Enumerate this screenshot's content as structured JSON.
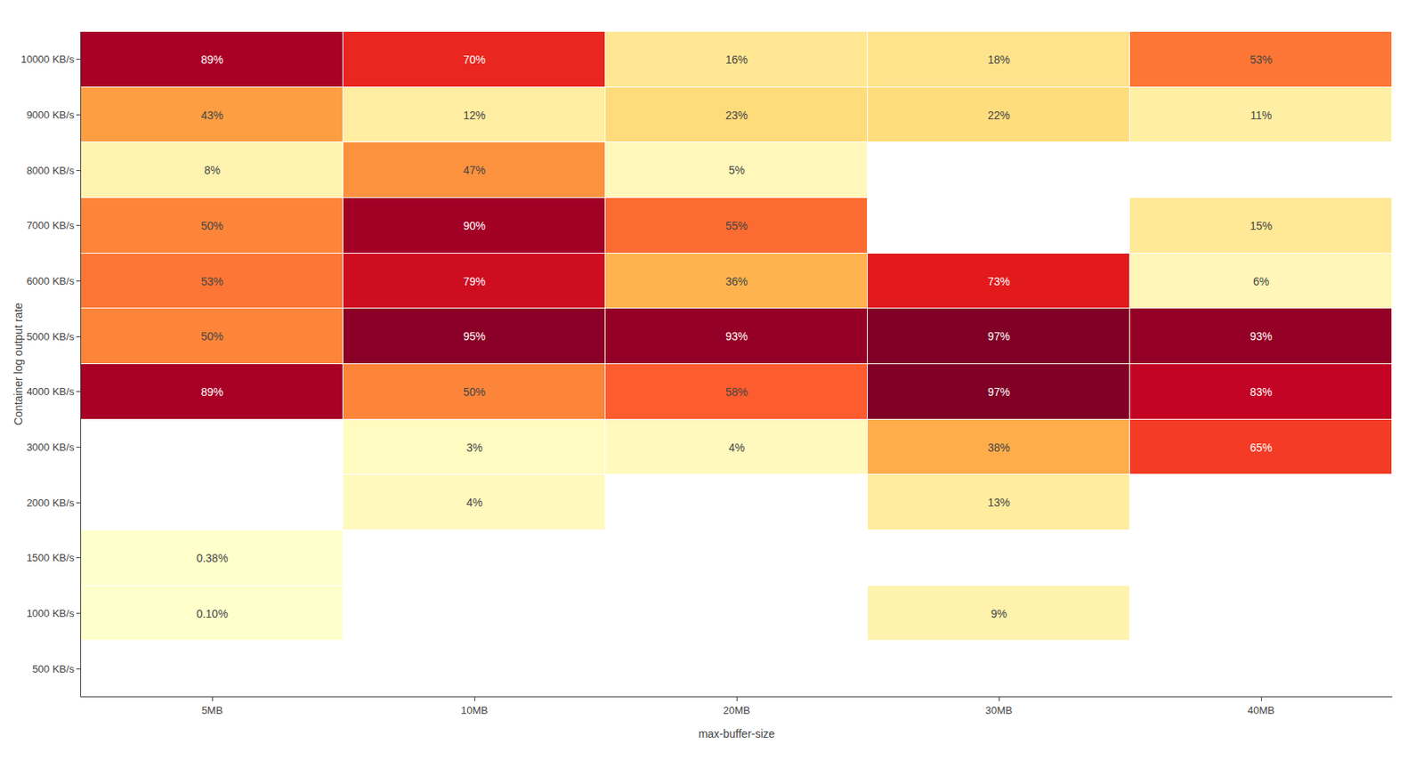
{
  "chart_data": {
    "type": "heatmap",
    "x": [
      "5MB",
      "10MB",
      "20MB",
      "30MB",
      "40MB"
    ],
    "y": [
      "500 KB/s",
      "1000 KB/s",
      "1500 KB/s",
      "2000 KB/s",
      "3000 KB/s",
      "4000 KB/s",
      "5000 KB/s",
      "6000 KB/s",
      "7000 KB/s",
      "8000 KB/s",
      "9000 KB/s",
      "10000 KB/s"
    ],
    "values": [
      [
        null,
        null,
        null,
        null,
        null
      ],
      [
        0.1,
        null,
        null,
        9.0,
        null
      ],
      [
        0.38,
        null,
        null,
        null,
        null
      ],
      [
        null,
        4.0,
        null,
        13.0,
        null
      ],
      [
        null,
        3.0,
        4.0,
        38.0,
        65.0
      ],
      [
        89.0,
        50.0,
        58.0,
        97.0,
        83.0
      ],
      [
        50.0,
        95.0,
        93.0,
        97.0,
        93.0
      ],
      [
        53.0,
        79.0,
        36.0,
        73.0,
        6.0
      ],
      [
        50.0,
        90.0,
        55.0,
        null,
        15.0
      ],
      [
        8.0,
        47.0,
        5.0,
        null,
        null
      ],
      [
        43.0,
        12.0,
        23.0,
        22.0,
        11.0
      ],
      [
        89.0,
        70.0,
        16.0,
        18.0,
        53.0
      ]
    ],
    "value_labels": [
      [
        null,
        null,
        null,
        null,
        null
      ],
      [
        "0.10%",
        null,
        null,
        "9%",
        null
      ],
      [
        "0.38%",
        null,
        null,
        null,
        null
      ],
      [
        null,
        "4%",
        null,
        "13%",
        null
      ],
      [
        null,
        "3%",
        "4%",
        "38%",
        "65%"
      ],
      [
        "89%",
        "50%",
        "58%",
        "97%",
        "83%"
      ],
      [
        "50%",
        "95%",
        "93%",
        "97%",
        "93%"
      ],
      [
        "53%",
        "79%",
        "36%",
        "73%",
        "6%"
      ],
      [
        "50%",
        "90%",
        "55%",
        null,
        "15%"
      ],
      [
        "8%",
        "47%",
        "5%",
        null,
        null
      ],
      [
        "43%",
        "12%",
        "23%",
        "22%",
        "11%"
      ],
      [
        "89%",
        "70%",
        "16%",
        "18%",
        "53%"
      ]
    ],
    "xlabel": "max-buffer-size",
    "ylabel": "Container log output rate",
    "grid": false,
    "data_labels": true
  }
}
